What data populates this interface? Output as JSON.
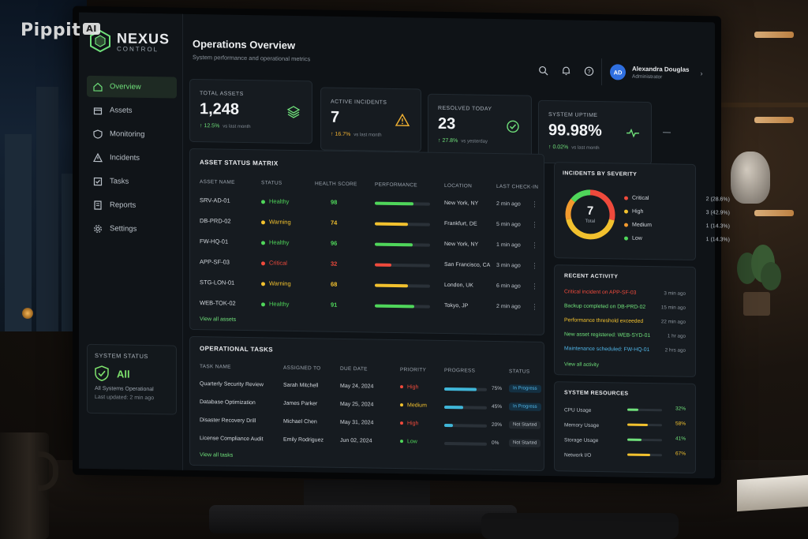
{
  "watermark": {
    "text": "Pippit",
    "badge": "AI"
  },
  "brand": {
    "name": "NEXUS",
    "sub": "CONTROL"
  },
  "sidebar": {
    "items": [
      {
        "label": "Overview",
        "icon": "home-icon",
        "active": true
      },
      {
        "label": "Assets",
        "icon": "box-icon",
        "active": false
      },
      {
        "label": "Monitoring",
        "icon": "shield-icon",
        "active": false
      },
      {
        "label": "Incidents",
        "icon": "alert-icon",
        "active": false
      },
      {
        "label": "Tasks",
        "icon": "checklist-icon",
        "active": false
      },
      {
        "label": "Reports",
        "icon": "report-icon",
        "active": false
      },
      {
        "label": "Settings",
        "icon": "gear-icon",
        "active": false
      }
    ],
    "system_status": {
      "title": "SYSTEM STATUS",
      "badge": "All",
      "line": "All Systems Operational",
      "updated": "Last updated: 2 min ago"
    }
  },
  "header": {
    "title": "Operations Overview",
    "subtitle": "System performance and operational metrics",
    "user": {
      "initials": "AD",
      "name": "Alexandra Douglas",
      "role": "Administrator"
    }
  },
  "kpis": [
    {
      "label": "TOTAL ASSETS",
      "value": "1,248",
      "delta": "↑ 12.5%",
      "note": "vs last month",
      "icon": "layers-icon",
      "color": "#6fe07a"
    },
    {
      "label": "ACTIVE INCIDENTS",
      "value": "7",
      "delta": "↑ 16.7%",
      "note": "vs last month",
      "icon": "warning-icon",
      "color": "#f2b232"
    },
    {
      "label": "RESOLVED TODAY",
      "value": "23",
      "delta": "↑ 27.8%",
      "note": "vs yesterday",
      "icon": "check-circle-icon",
      "color": "#6fe07a"
    },
    {
      "label": "SYSTEM UPTIME",
      "value": "99.98%",
      "delta": "↑ 0.02%",
      "note": "vs last month",
      "icon": "pulse-icon",
      "color": "#6fe07a"
    }
  ],
  "assets": {
    "title": "ASSET STATUS MATRIX",
    "headers": [
      "ASSET NAME",
      "STATUS",
      "HEALTH SCORE",
      "PERFORMANCE",
      "LOCATION",
      "LAST CHECK-IN"
    ],
    "rows": [
      {
        "name": "SRV-AD-01",
        "status": "Healthy",
        "score": "98",
        "perf": 0.7,
        "location": "New York, NY",
        "checkin": "2 min ago",
        "color": "#4fd65a"
      },
      {
        "name": "DB-PRD-02",
        "status": "Warning",
        "score": "74",
        "perf": 0.6,
        "location": "Frankfurt, DE",
        "checkin": "5 min ago",
        "color": "#f2c12e"
      },
      {
        "name": "FW-HQ-01",
        "status": "Healthy",
        "score": "96",
        "perf": 0.68,
        "location": "New York, NY",
        "checkin": "1 min ago",
        "color": "#4fd65a"
      },
      {
        "name": "APP-SF-03",
        "status": "Critical",
        "score": "32",
        "perf": 0.3,
        "location": "San Francisco, CA",
        "checkin": "3 min ago",
        "color": "#ef4a3c"
      },
      {
        "name": "STG-LON-01",
        "status": "Warning",
        "score": "68",
        "perf": 0.6,
        "location": "London, UK",
        "checkin": "6 min ago",
        "color": "#f2c12e"
      },
      {
        "name": "WEB-TOK-02",
        "status": "Healthy",
        "score": "91",
        "perf": 0.72,
        "location": "Tokyo, JP",
        "checkin": "2 min ago",
        "color": "#4fd65a"
      }
    ],
    "link": "View all assets"
  },
  "severity": {
    "title": "INCIDENTS BY SEVERITY",
    "total": "7",
    "total_label": "Total",
    "items": [
      {
        "label": "Critical",
        "count": "2 (28.6%)",
        "value": 2,
        "color": "#ef4a3c"
      },
      {
        "label": "High",
        "count": "3 (42.9%)",
        "value": 3,
        "color": "#f2c12e"
      },
      {
        "label": "Medium",
        "count": "1 (14.3%)",
        "value": 1,
        "color": "#f29a2e"
      },
      {
        "label": "Low",
        "count": "1 (14.3%)",
        "value": 1,
        "color": "#4fd65a"
      }
    ]
  },
  "activity": {
    "title": "RECENT ACTIVITY",
    "items": [
      {
        "text": "Critical incident on APP-SF-03",
        "time": "3 min ago",
        "color": "#ef4a3c"
      },
      {
        "text": "Backup completed on DB-PRD-02",
        "time": "15 min ago",
        "color": "#6fe07a"
      },
      {
        "text": "Performance threshold exceeded",
        "time": "22 min ago",
        "color": "#f2c12e"
      },
      {
        "text": "New asset registered: WEB-SYD-01",
        "time": "1 hr ago",
        "color": "#6fe07a"
      },
      {
        "text": "Maintenance scheduled: FW-HQ-01",
        "time": "2 hrs ago",
        "color": "#4fb4e6"
      }
    ],
    "link": "View all activity"
  },
  "tasks": {
    "title": "OPERATIONAL TASKS",
    "headers": [
      "TASK NAME",
      "ASSIGNED TO",
      "DUE DATE",
      "PRIORITY",
      "PROGRESS",
      "STATUS"
    ],
    "rows": [
      {
        "name": "Quarterly Security Review",
        "assignee": "Sarah Mitchell",
        "due": "May 24, 2024",
        "priority": "High",
        "pcolor": "#ef4a3c",
        "progress": 0.75,
        "ptext": "75%",
        "status": "In Progress"
      },
      {
        "name": "Database Optimization",
        "assignee": "James Parker",
        "due": "May 25, 2024",
        "priority": "Medium",
        "pcolor": "#f2c12e",
        "progress": 0.45,
        "ptext": "45%",
        "status": "In Progress"
      },
      {
        "name": "Disaster Recovery Drill",
        "assignee": "Michael Chen",
        "due": "May 31, 2024",
        "priority": "High",
        "pcolor": "#ef4a3c",
        "progress": 0.2,
        "ptext": "20%",
        "status": "Not Started"
      },
      {
        "name": "License Compliance Audit",
        "assignee": "Emily Rodriguez",
        "due": "Jun 02, 2024",
        "priority": "Low",
        "pcolor": "#4fd65a",
        "progress": 0.0,
        "ptext": "0%",
        "status": "Not Started"
      }
    ],
    "link": "View all tasks"
  },
  "resources": {
    "title": "SYSTEM RESOURCES",
    "items": [
      {
        "label": "CPU Usage",
        "value": 0.32,
        "text": "32%",
        "color": "#6fe07a"
      },
      {
        "label": "Memory Usage",
        "value": 0.58,
        "text": "58%",
        "color": "#f2c12e"
      },
      {
        "label": "Storage Usage",
        "value": 0.41,
        "text": "41%",
        "color": "#6fe07a"
      },
      {
        "label": "Network I/O",
        "value": 0.67,
        "text": "67%",
        "color": "#f2c12e"
      }
    ]
  }
}
